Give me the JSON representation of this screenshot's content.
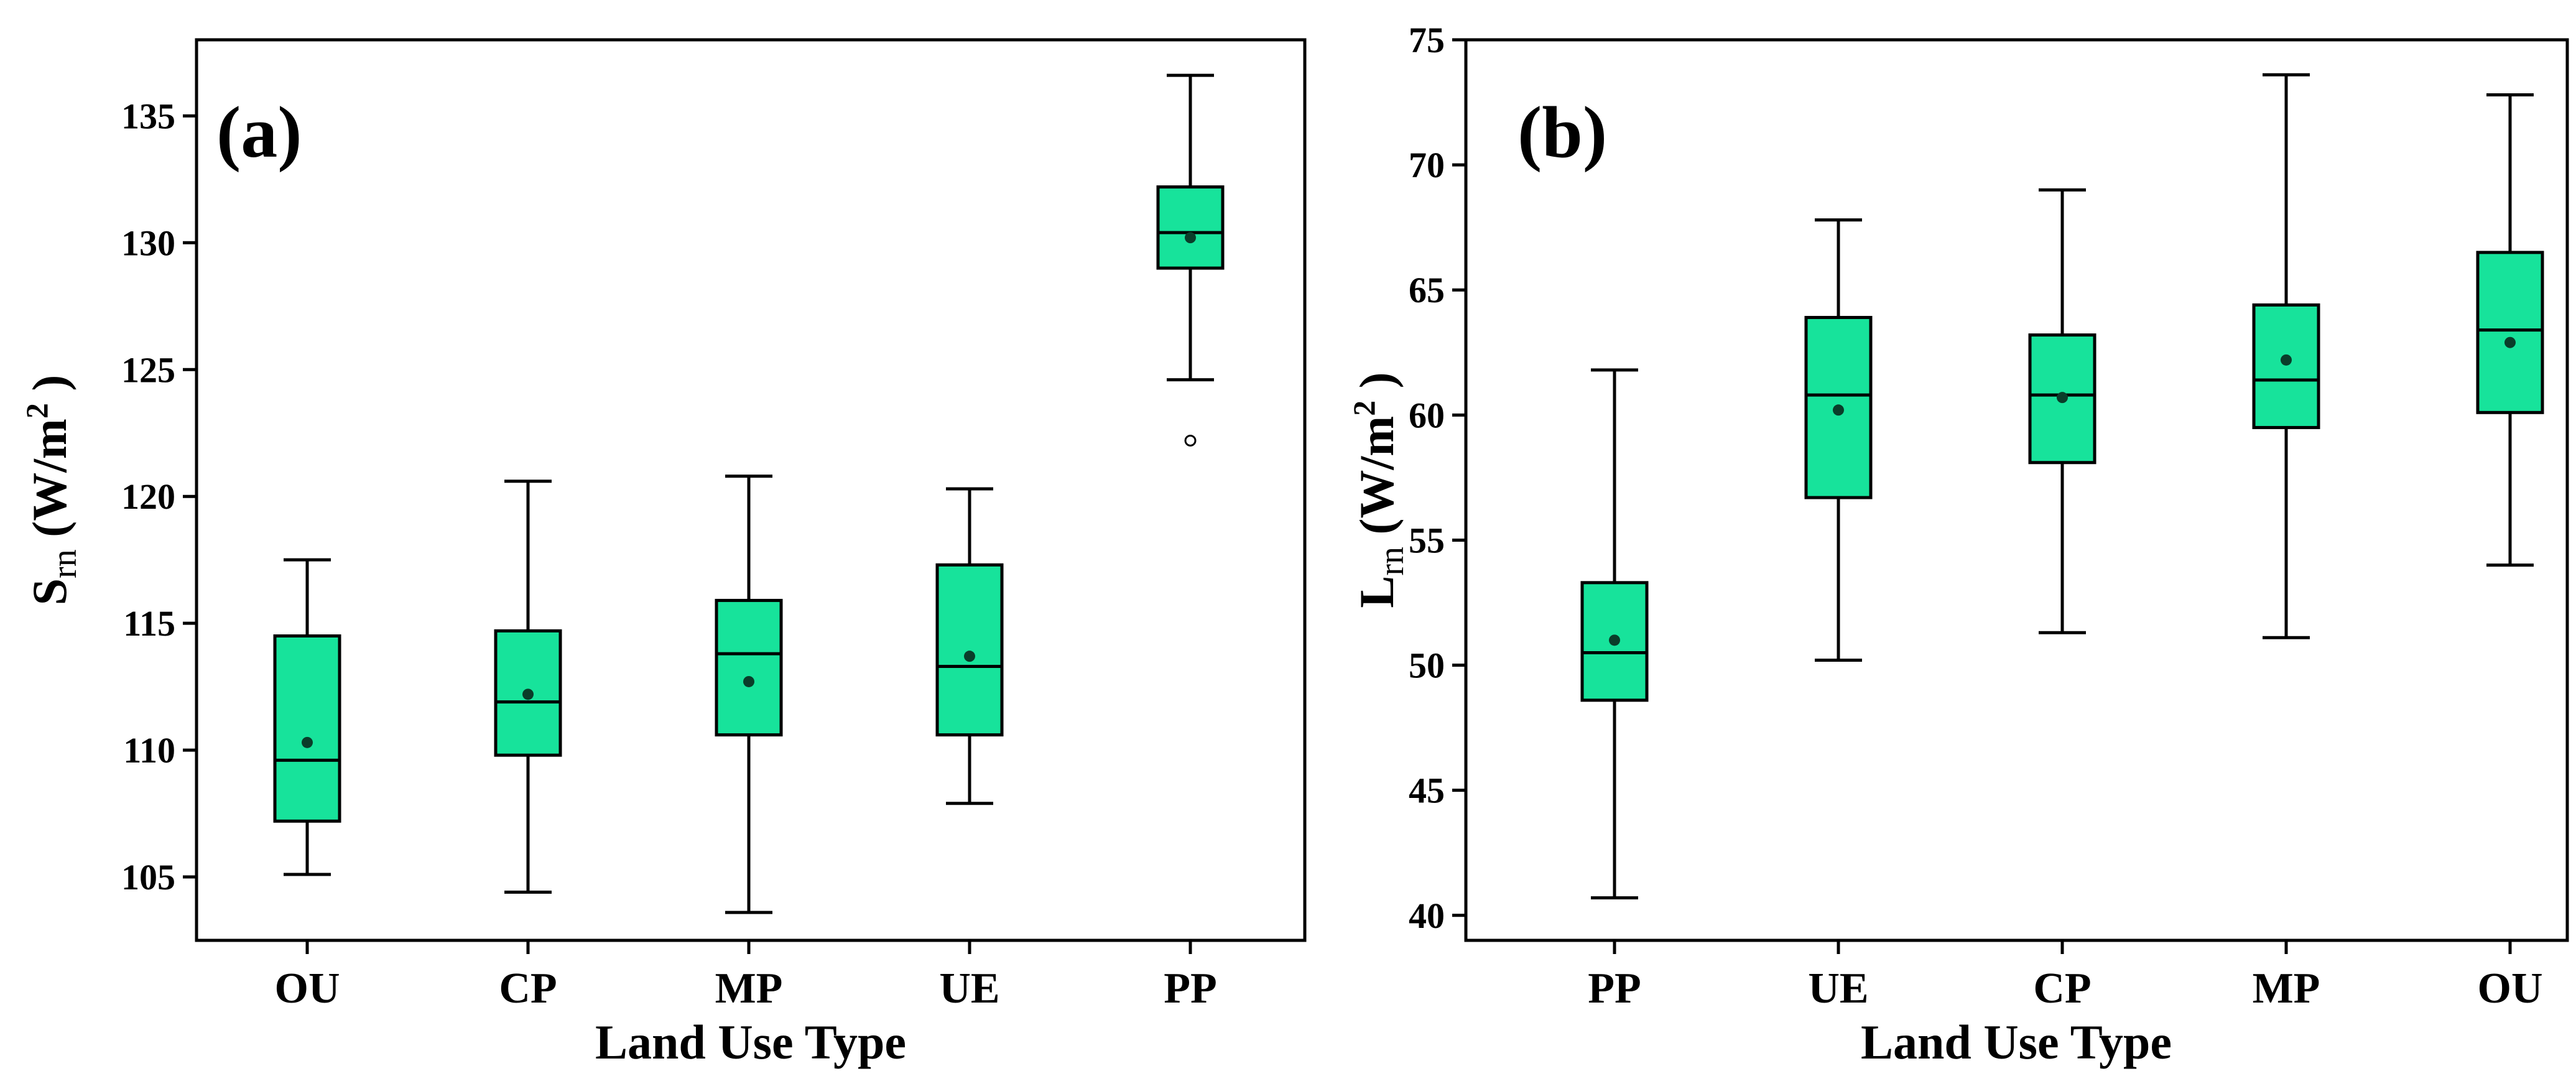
{
  "figure": {
    "background": "#ffffff",
    "box_fill": "#17e39b",
    "line_color": "#000000",
    "mean_marker_color": "#0a3d2a"
  },
  "chart_data": [
    {
      "type": "box",
      "panel_label": "(a)",
      "xlabel": "Land Use Type",
      "ylabel": {
        "main": "S",
        "sub": "rn",
        "unit_open": " (W/m",
        "sup": "2",
        "unit_close": " )"
      },
      "ylim": [
        102.5,
        138.0
      ],
      "yticks": [
        105,
        110,
        115,
        120,
        125,
        130,
        135
      ],
      "categories": [
        "OU",
        "CP",
        "MP",
        "UE",
        "PP"
      ],
      "boxes": [
        {
          "category": "OU",
          "whisker_low": 105.1,
          "q1": 107.2,
          "median": 109.6,
          "q3": 114.5,
          "whisker_high": 117.5,
          "mean": 110.3,
          "outliers": []
        },
        {
          "category": "CP",
          "whisker_low": 104.4,
          "q1": 109.8,
          "median": 111.9,
          "q3": 114.7,
          "whisker_high": 120.6,
          "mean": 112.2,
          "outliers": []
        },
        {
          "category": "MP",
          "whisker_low": 103.6,
          "q1": 110.6,
          "median": 113.8,
          "q3": 115.9,
          "whisker_high": 120.8,
          "mean": 112.7,
          "outliers": []
        },
        {
          "category": "UE",
          "whisker_low": 107.9,
          "q1": 110.6,
          "median": 113.3,
          "q3": 117.3,
          "whisker_high": 120.3,
          "mean": 113.7,
          "outliers": []
        },
        {
          "category": "PP",
          "whisker_low": 124.6,
          "q1": 129.0,
          "median": 130.4,
          "q3": 132.2,
          "whisker_high": 136.6,
          "mean": 130.2,
          "outliers": [
            122.2
          ]
        }
      ]
    },
    {
      "type": "box",
      "panel_label": "(b)",
      "xlabel": "Land Use Type",
      "ylabel": {
        "main": "L",
        "sub": "rn",
        "unit_open": " (W/m",
        "sup": "2",
        "unit_close": " )"
      },
      "ylim": [
        39.0,
        75.0
      ],
      "yticks": [
        40,
        45,
        50,
        55,
        60,
        65,
        70,
        75
      ],
      "categories": [
        "PP",
        "UE",
        "CP",
        "MP",
        "OU"
      ],
      "boxes": [
        {
          "category": "PP",
          "whisker_low": 40.7,
          "q1": 48.6,
          "median": 50.5,
          "q3": 53.3,
          "whisker_high": 61.8,
          "mean": 51.0,
          "outliers": []
        },
        {
          "category": "UE",
          "whisker_low": 50.2,
          "q1": 56.7,
          "median": 60.8,
          "q3": 63.9,
          "whisker_high": 67.8,
          "mean": 60.2,
          "outliers": []
        },
        {
          "category": "CP",
          "whisker_low": 51.3,
          "q1": 58.1,
          "median": 60.8,
          "q3": 63.2,
          "whisker_high": 69.0,
          "mean": 60.7,
          "outliers": []
        },
        {
          "category": "MP",
          "whisker_low": 51.1,
          "q1": 59.5,
          "median": 61.4,
          "q3": 64.4,
          "whisker_high": 73.6,
          "mean": 62.2,
          "outliers": []
        },
        {
          "category": "OU",
          "whisker_low": 54.0,
          "q1": 60.1,
          "median": 63.4,
          "q3": 66.5,
          "whisker_high": 72.8,
          "mean": 62.9,
          "outliers": []
        }
      ]
    }
  ]
}
